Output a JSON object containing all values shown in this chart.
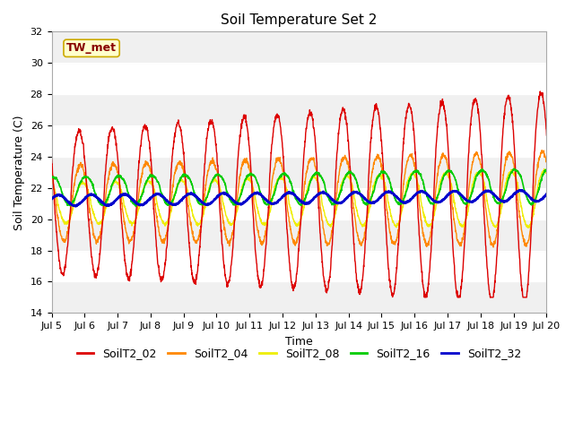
{
  "title": "Soil Temperature Set 2",
  "xlabel": "Time",
  "ylabel": "Soil Temperature (C)",
  "ylim": [
    14,
    32
  ],
  "xlim": [
    0,
    15
  ],
  "x_tick_labels": [
    "Jul 5",
    "Jul 6",
    "Jul 7",
    "Jul 8",
    "Jul 9",
    "Jul 10",
    "Jul 11",
    "Jul 12",
    "Jul 13",
    "Jul 14",
    "Jul 15",
    "Jul 16",
    "Jul 17",
    "Jul 18",
    "Jul 19",
    "Jul 20"
  ],
  "annotation": "TW_met",
  "series": {
    "SoilT2_02": {
      "color": "#dd0000"
    },
    "SoilT2_04": {
      "color": "#ff8800"
    },
    "SoilT2_08": {
      "color": "#eeee00"
    },
    "SoilT2_16": {
      "color": "#00cc00"
    },
    "SoilT2_32": {
      "color": "#0000cc"
    }
  },
  "fig_bg": "#ffffff",
  "plot_bg_light": "#f0f0f0",
  "plot_bg_dark": "#e0e0e0",
  "title_fontsize": 11,
  "axis_fontsize": 9,
  "tick_fontsize": 8,
  "legend_fontsize": 9
}
